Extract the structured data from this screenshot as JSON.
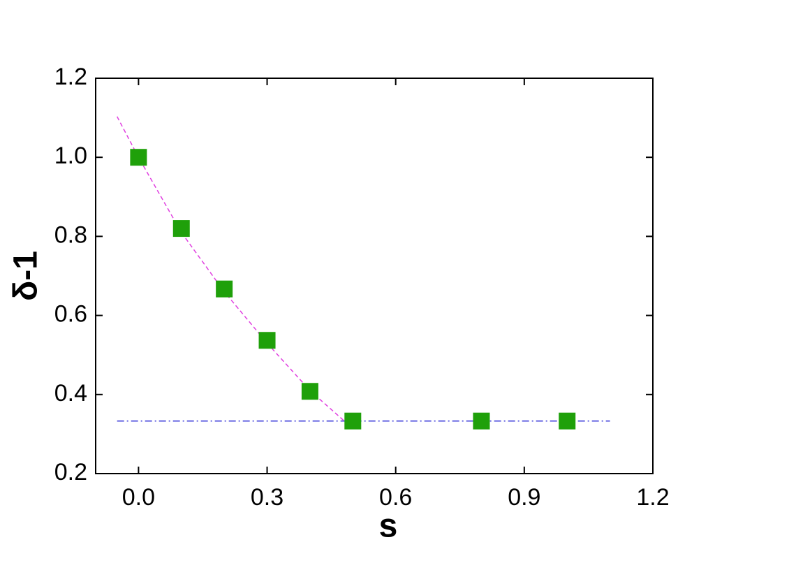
{
  "chart_data": {
    "type": "scatter",
    "x_label": "s",
    "y_label": "δ-1",
    "xlim": [
      -0.1,
      1.2
    ],
    "ylim": [
      0.2,
      1.2
    ],
    "xticks": [
      {
        "value": 0.0,
        "label": "0.0"
      },
      0.3,
      0.6,
      0.9,
      1.2
    ],
    "yticks": [
      0.2,
      0.4,
      0.6,
      0.8,
      {
        "value": 1.0,
        "label": "1.0"
      },
      1.2
    ],
    "series": [
      {
        "kind": "line",
        "style": "dashed",
        "color": "#e040e0",
        "x": [
          -0.05,
          0.0,
          0.1,
          0.2,
          0.3,
          0.4,
          0.48
        ],
        "values": [
          1.103,
          1.0,
          0.81,
          0.66,
          0.53,
          0.41,
          0.333
        ]
      },
      {
        "kind": "line",
        "style": "dashdot",
        "color": "#3a3ad8",
        "x": [
          -0.05,
          1.1
        ],
        "values": [
          0.333,
          0.333
        ]
      },
      {
        "kind": "points",
        "marker": "square",
        "color": "#1fa00a",
        "x": [
          0.0,
          0.1,
          0.2,
          0.3,
          0.4,
          0.5,
          0.8,
          1.0
        ],
        "values": [
          1.0,
          0.82,
          0.667,
          0.537,
          0.408,
          0.333,
          0.333,
          0.333
        ]
      }
    ]
  }
}
